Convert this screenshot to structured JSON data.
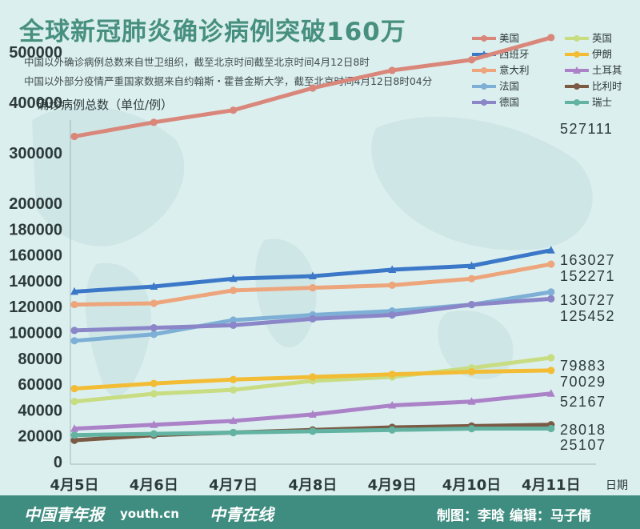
{
  "title": "全球新冠肺炎确诊病例突破160万",
  "subtitle_1": "中国以外确诊病例总数来自世卫组织，截至北京时间截至北京时间4月12日8时",
  "subtitle_2": "中国以外部分疫情严重国家数据来自约翰斯・霍普金斯大学，截至北京时间4月12日8时04分",
  "footer": {
    "brand_1": "中国青年报",
    "brand_2": "youth.cn",
    "brand_3": "中青在线",
    "credit": "制图：李晗   编辑：马子倩"
  },
  "colors": {
    "background": "#dcefef",
    "title": "#47907f",
    "footer": "#3f8d80"
  },
  "chart_data": {
    "type": "line",
    "title": "全球新冠肺炎确诊病例突破160万",
    "xlabel": "日期",
    "ylabel": "确诊病例总数（单位/例）",
    "categories": [
      "4月5日",
      "4月6日",
      "4月7日",
      "4月8日",
      "4月9日",
      "4月10日",
      "4月11日"
    ],
    "y_ticks": [
      "0",
      "20000",
      "40000",
      "60000",
      "80000",
      "100000",
      "120000",
      "140000",
      "160000",
      "180000",
      "200000",
      "300000",
      "400000",
      "500000"
    ],
    "axis_note": "y axis is linear 0–200000 in steps of 20000, then compressed 200000–500000 in steps of 100000",
    "grid": false,
    "legend_position": "top-right",
    "series": [
      {
        "name": "美国",
        "color": "#d9877a",
        "marker": "circle",
        "values": [
          331000,
          359000,
          383000,
          427000,
          462000,
          483000,
          527111
        ],
        "end_label": "527111"
      },
      {
        "name": "西班牙",
        "color": "#3c78c8",
        "marker": "triangle",
        "values": [
          131000,
          135000,
          141000,
          143000,
          148000,
          151000,
          163027
        ],
        "end_label": "163027"
      },
      {
        "name": "意大利",
        "color": "#eda57c",
        "marker": "circle",
        "values": [
          121000,
          122000,
          132000,
          134000,
          136000,
          141000,
          152271
        ],
        "end_label": "152271"
      },
      {
        "name": "法国",
        "color": "#7eb0d6",
        "marker": "circle",
        "values": [
          93000,
          98000,
          109000,
          113000,
          116000,
          121000,
          130727
        ],
        "end_label": "130727"
      },
      {
        "name": "德国",
        "color": "#8a86c8",
        "marker": "circle",
        "values": [
          101000,
          103000,
          105000,
          110000,
          113000,
          121000,
          125452
        ],
        "end_label": "125452"
      },
      {
        "name": "英国",
        "color": "#c8dc82",
        "marker": "circle",
        "values": [
          46000,
          52000,
          55000,
          62000,
          65000,
          72000,
          79883
        ],
        "end_label": "79883"
      },
      {
        "name": "伊朗",
        "color": "#f2bc34",
        "marker": "circle",
        "values": [
          56000,
          60000,
          63000,
          65000,
          67000,
          69000,
          70029
        ],
        "end_label": "70029"
      },
      {
        "name": "土耳其",
        "color": "#ab82c8",
        "marker": "triangle",
        "values": [
          25000,
          28000,
          31000,
          36000,
          43000,
          46000,
          52167
        ],
        "end_label": "52167"
      },
      {
        "name": "比利时",
        "color": "#7a5a44",
        "marker": "circle",
        "values": [
          16000,
          20000,
          22000,
          24000,
          26000,
          27000,
          28018
        ],
        "end_label": "28018"
      },
      {
        "name": "瑞士",
        "color": "#62b3a2",
        "marker": "circle",
        "values": [
          20000,
          21000,
          22000,
          23000,
          24000,
          25000,
          25107
        ],
        "end_label": "25107"
      }
    ]
  }
}
